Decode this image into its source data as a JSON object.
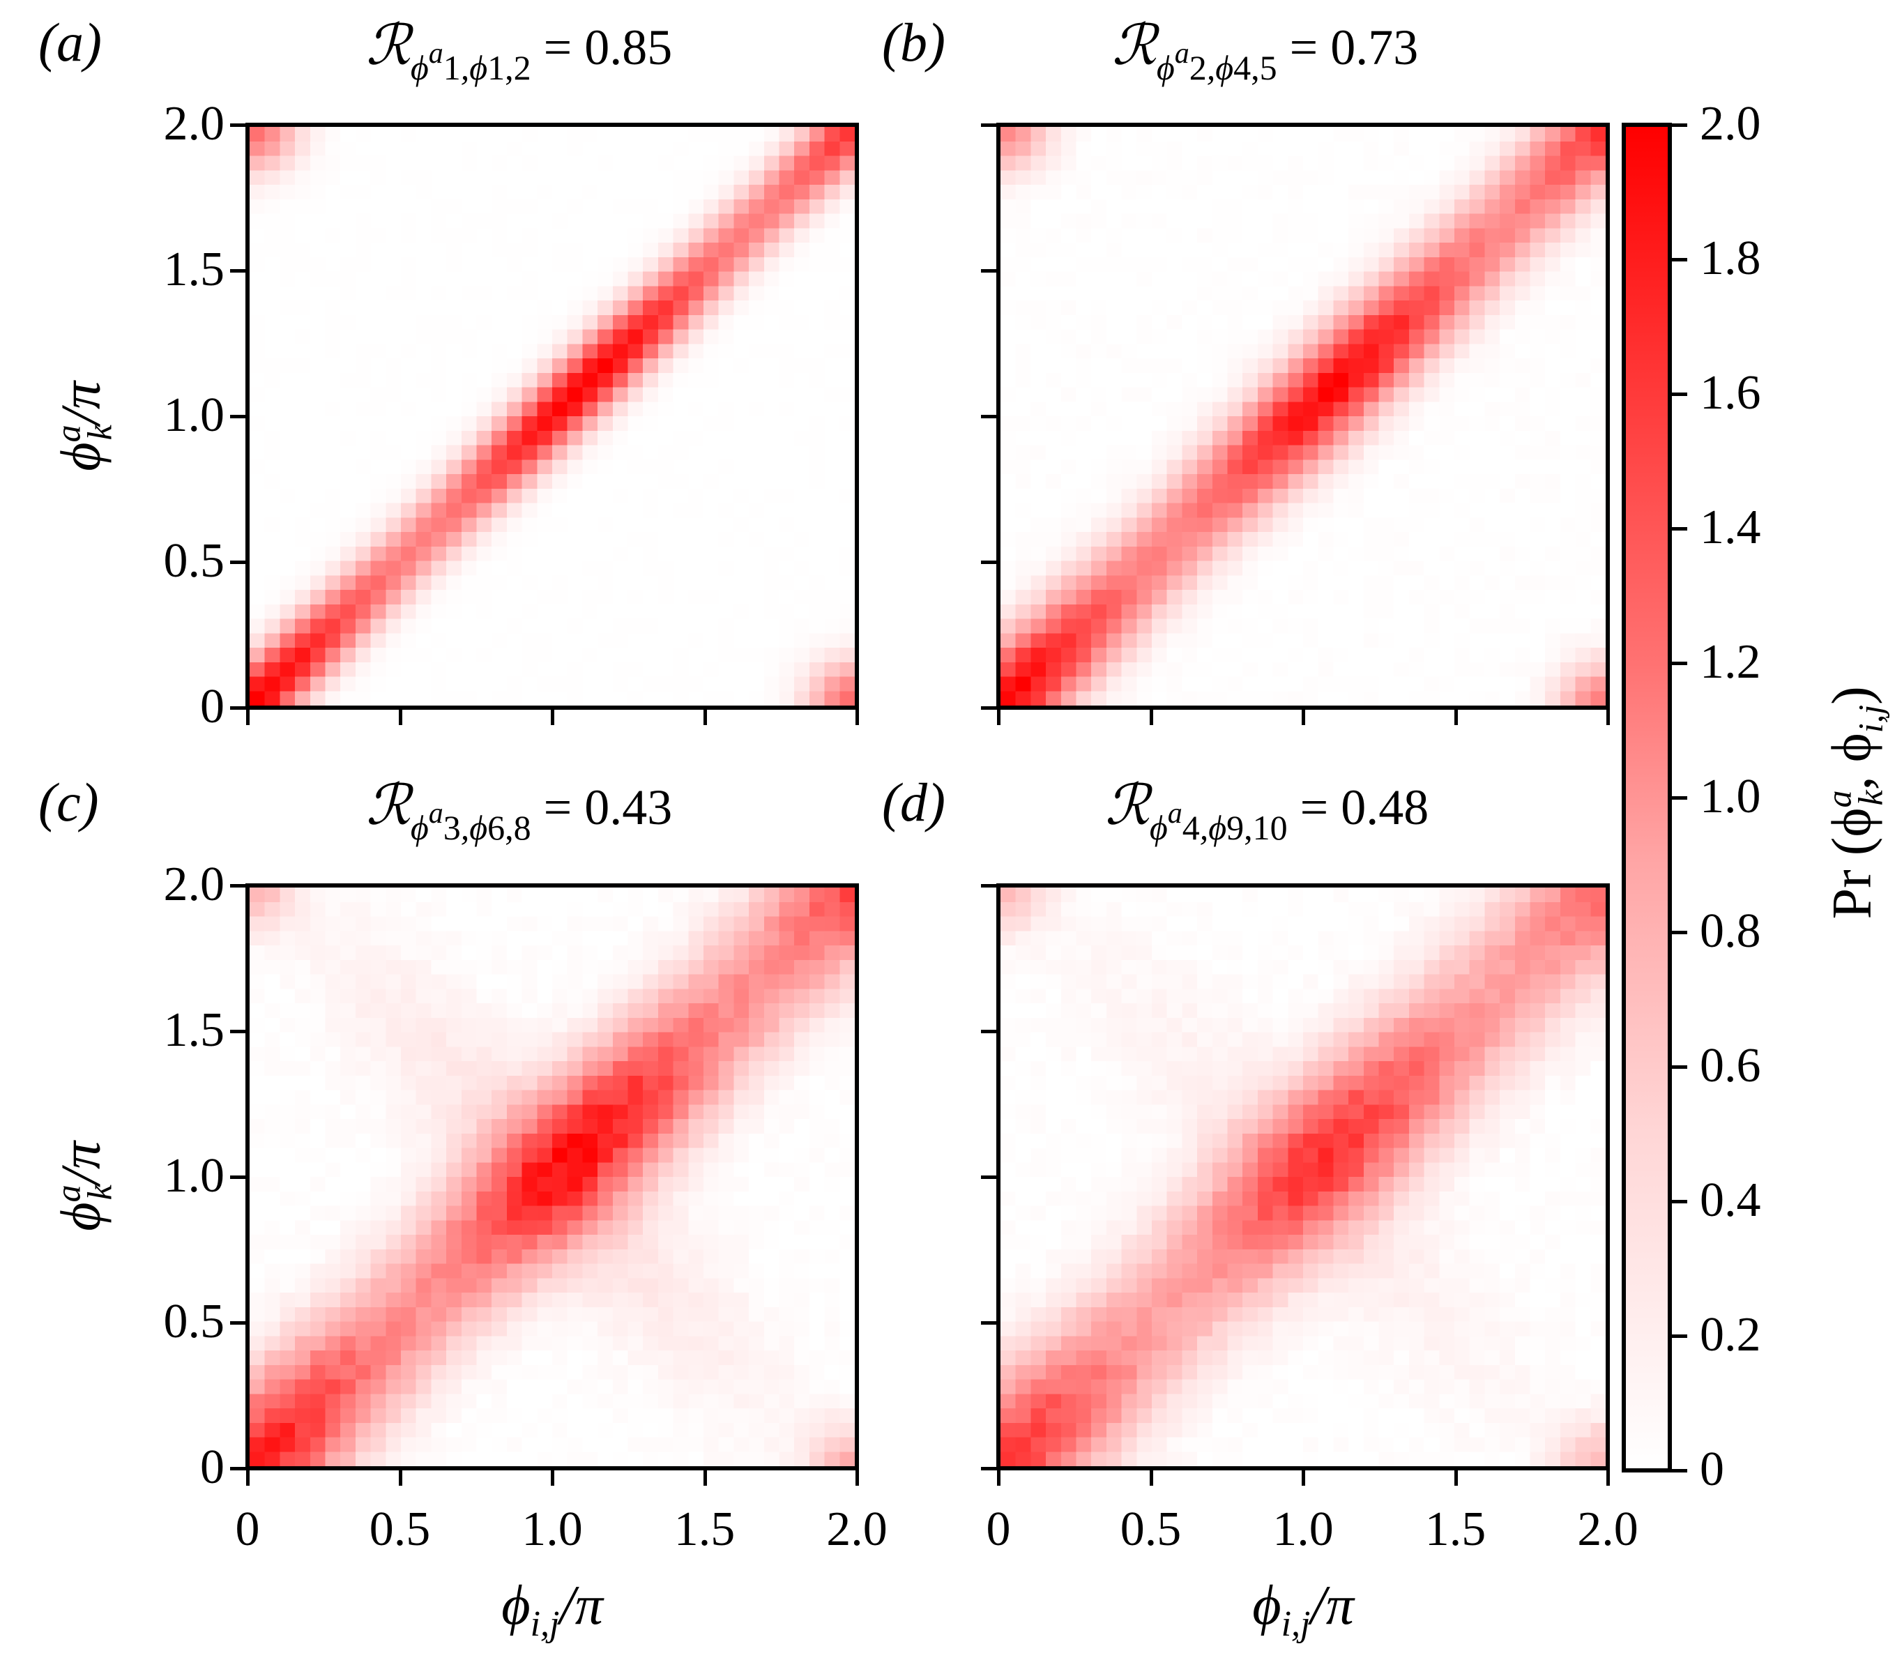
{
  "figure": {
    "colormap": {
      "low": "#ffffff",
      "high": "#ff0000"
    },
    "colorbar": {
      "label": "Pr (ϕ",
      "label_sup": "a",
      "label_sub": "k",
      "label_mid": ", ϕ",
      "label_sub2": "i,j",
      "label_end": ")",
      "ticks": [
        "0",
        "0.2",
        "0.4",
        "0.6",
        "0.8",
        "1.0",
        "1.2",
        "1.4",
        "1.6",
        "1.8",
        "2.0"
      ],
      "range": [
        0,
        2.0
      ]
    },
    "panels": [
      {
        "letter": "(a)",
        "var": "1",
        "pair": "1,2",
        "value": "= 0.85"
      },
      {
        "letter": "(b)",
        "var": "2",
        "pair": "4,5",
        "value": "= 0.73"
      },
      {
        "letter": "(c)",
        "var": "3",
        "pair": "6,8",
        "value": "= 0.43"
      },
      {
        "letter": "(d)",
        "var": "4",
        "pair": "9,10",
        "value": "= 0.48"
      }
    ],
    "axis_ticks": [
      "0",
      "0.5",
      "1.0",
      "1.5",
      "2.0"
    ],
    "ylabel": "ϕ",
    "ylabel_sup": "a",
    "ylabel_sub": "k",
    "ylabel_tail": "/π",
    "xlabel": "ϕ",
    "xlabel_sub": "i,j",
    "xlabel_tail": "/π",
    "title_symbol": "ℛ"
  },
  "chart_data": [
    {
      "type": "heatmap",
      "title": "R_{φ1^a, φ1,2} = 0.85",
      "panel": "(a)",
      "correlation": 0.85,
      "xlabel": "φ_{i,j}/π",
      "ylabel": "φ_k^a/π",
      "xlim": [
        0,
        2.0
      ],
      "ylim": [
        0,
        2.0
      ],
      "bins": 40,
      "xticks": [
        0,
        0.5,
        1.0,
        1.5,
        2.0
      ],
      "yticks": [
        0,
        0.5,
        1.0,
        1.5,
        2.0
      ],
      "description": "Narrow, intense diagonal band y≈x; peak density ~2.0 near (0,0), (1.0,1.0), (2,2); small corner hot spots at (0,2) and (2,0)",
      "band_width": 0.07,
      "peak": 2.0,
      "corner": 1.2,
      "anti_diag": 0.0,
      "noise": 0.05,
      "seed": 11
    },
    {
      "type": "heatmap",
      "title": "R_{φ2^a, φ4,5} = 0.73",
      "panel": "(b)",
      "correlation": 0.73,
      "xlabel": "φ_{i,j}/π",
      "ylabel": "φ_k^a/π",
      "xlim": [
        0,
        2.0
      ],
      "ylim": [
        0,
        2.0
      ],
      "bins": 40,
      "xticks": [
        0,
        0.5,
        1.0,
        1.5,
        2.0
      ],
      "yticks": [
        0,
        0.5,
        1.0,
        1.5,
        2.0
      ],
      "description": "Diagonal band slightly broader than (a); peak ~2.0 at ends and near (0.9,0.9)",
      "band_width": 0.1,
      "peak": 1.9,
      "corner": 1.0,
      "anti_diag": 0.0,
      "noise": 0.12,
      "seed": 23
    },
    {
      "type": "heatmap",
      "title": "R_{φ3^a, φ6,8} = 0.43",
      "panel": "(c)",
      "correlation": 0.43,
      "xlabel": "φ_{i,j}/π",
      "ylabel": "φ_k^a/π",
      "xlim": [
        0,
        2.0
      ],
      "ylim": [
        0,
        2.0
      ],
      "bins": 40,
      "xticks": [
        0,
        0.5,
        1.0,
        1.5,
        2.0
      ],
      "yticks": [
        0,
        0.5,
        1.0,
        1.5,
        2.0
      ],
      "description": "Broad diagonal band with peaks ~1.9 near (0.4,0.4) and (1.3,1.3); faint anti-diagonal X pattern; diffuse density in corners",
      "band_width": 0.14,
      "peak": 1.7,
      "corner": 0.6,
      "anti_diag": 0.25,
      "noise": 0.18,
      "seed": 37
    },
    {
      "type": "heatmap",
      "title": "R_{φ4^a, φ9,10} = 0.48",
      "panel": "(d)",
      "correlation": 0.48,
      "xlabel": "φ_{i,j}/π",
      "ylabel": "φ_k^a/π",
      "xlim": [
        0,
        2.0
      ],
      "ylim": [
        0,
        2.0
      ],
      "bins": 40,
      "xticks": [
        0,
        0.5,
        1.0,
        1.5,
        2.0
      ],
      "yticks": [
        0,
        0.5,
        1.0,
        1.5,
        2.0
      ],
      "description": "Broad diagonal band, peak ~1.6; faint anti-diagonal; diffuse corner density",
      "band_width": 0.15,
      "peak": 1.45,
      "corner": 0.6,
      "anti_diag": 0.15,
      "noise": 0.18,
      "seed": 53
    }
  ]
}
